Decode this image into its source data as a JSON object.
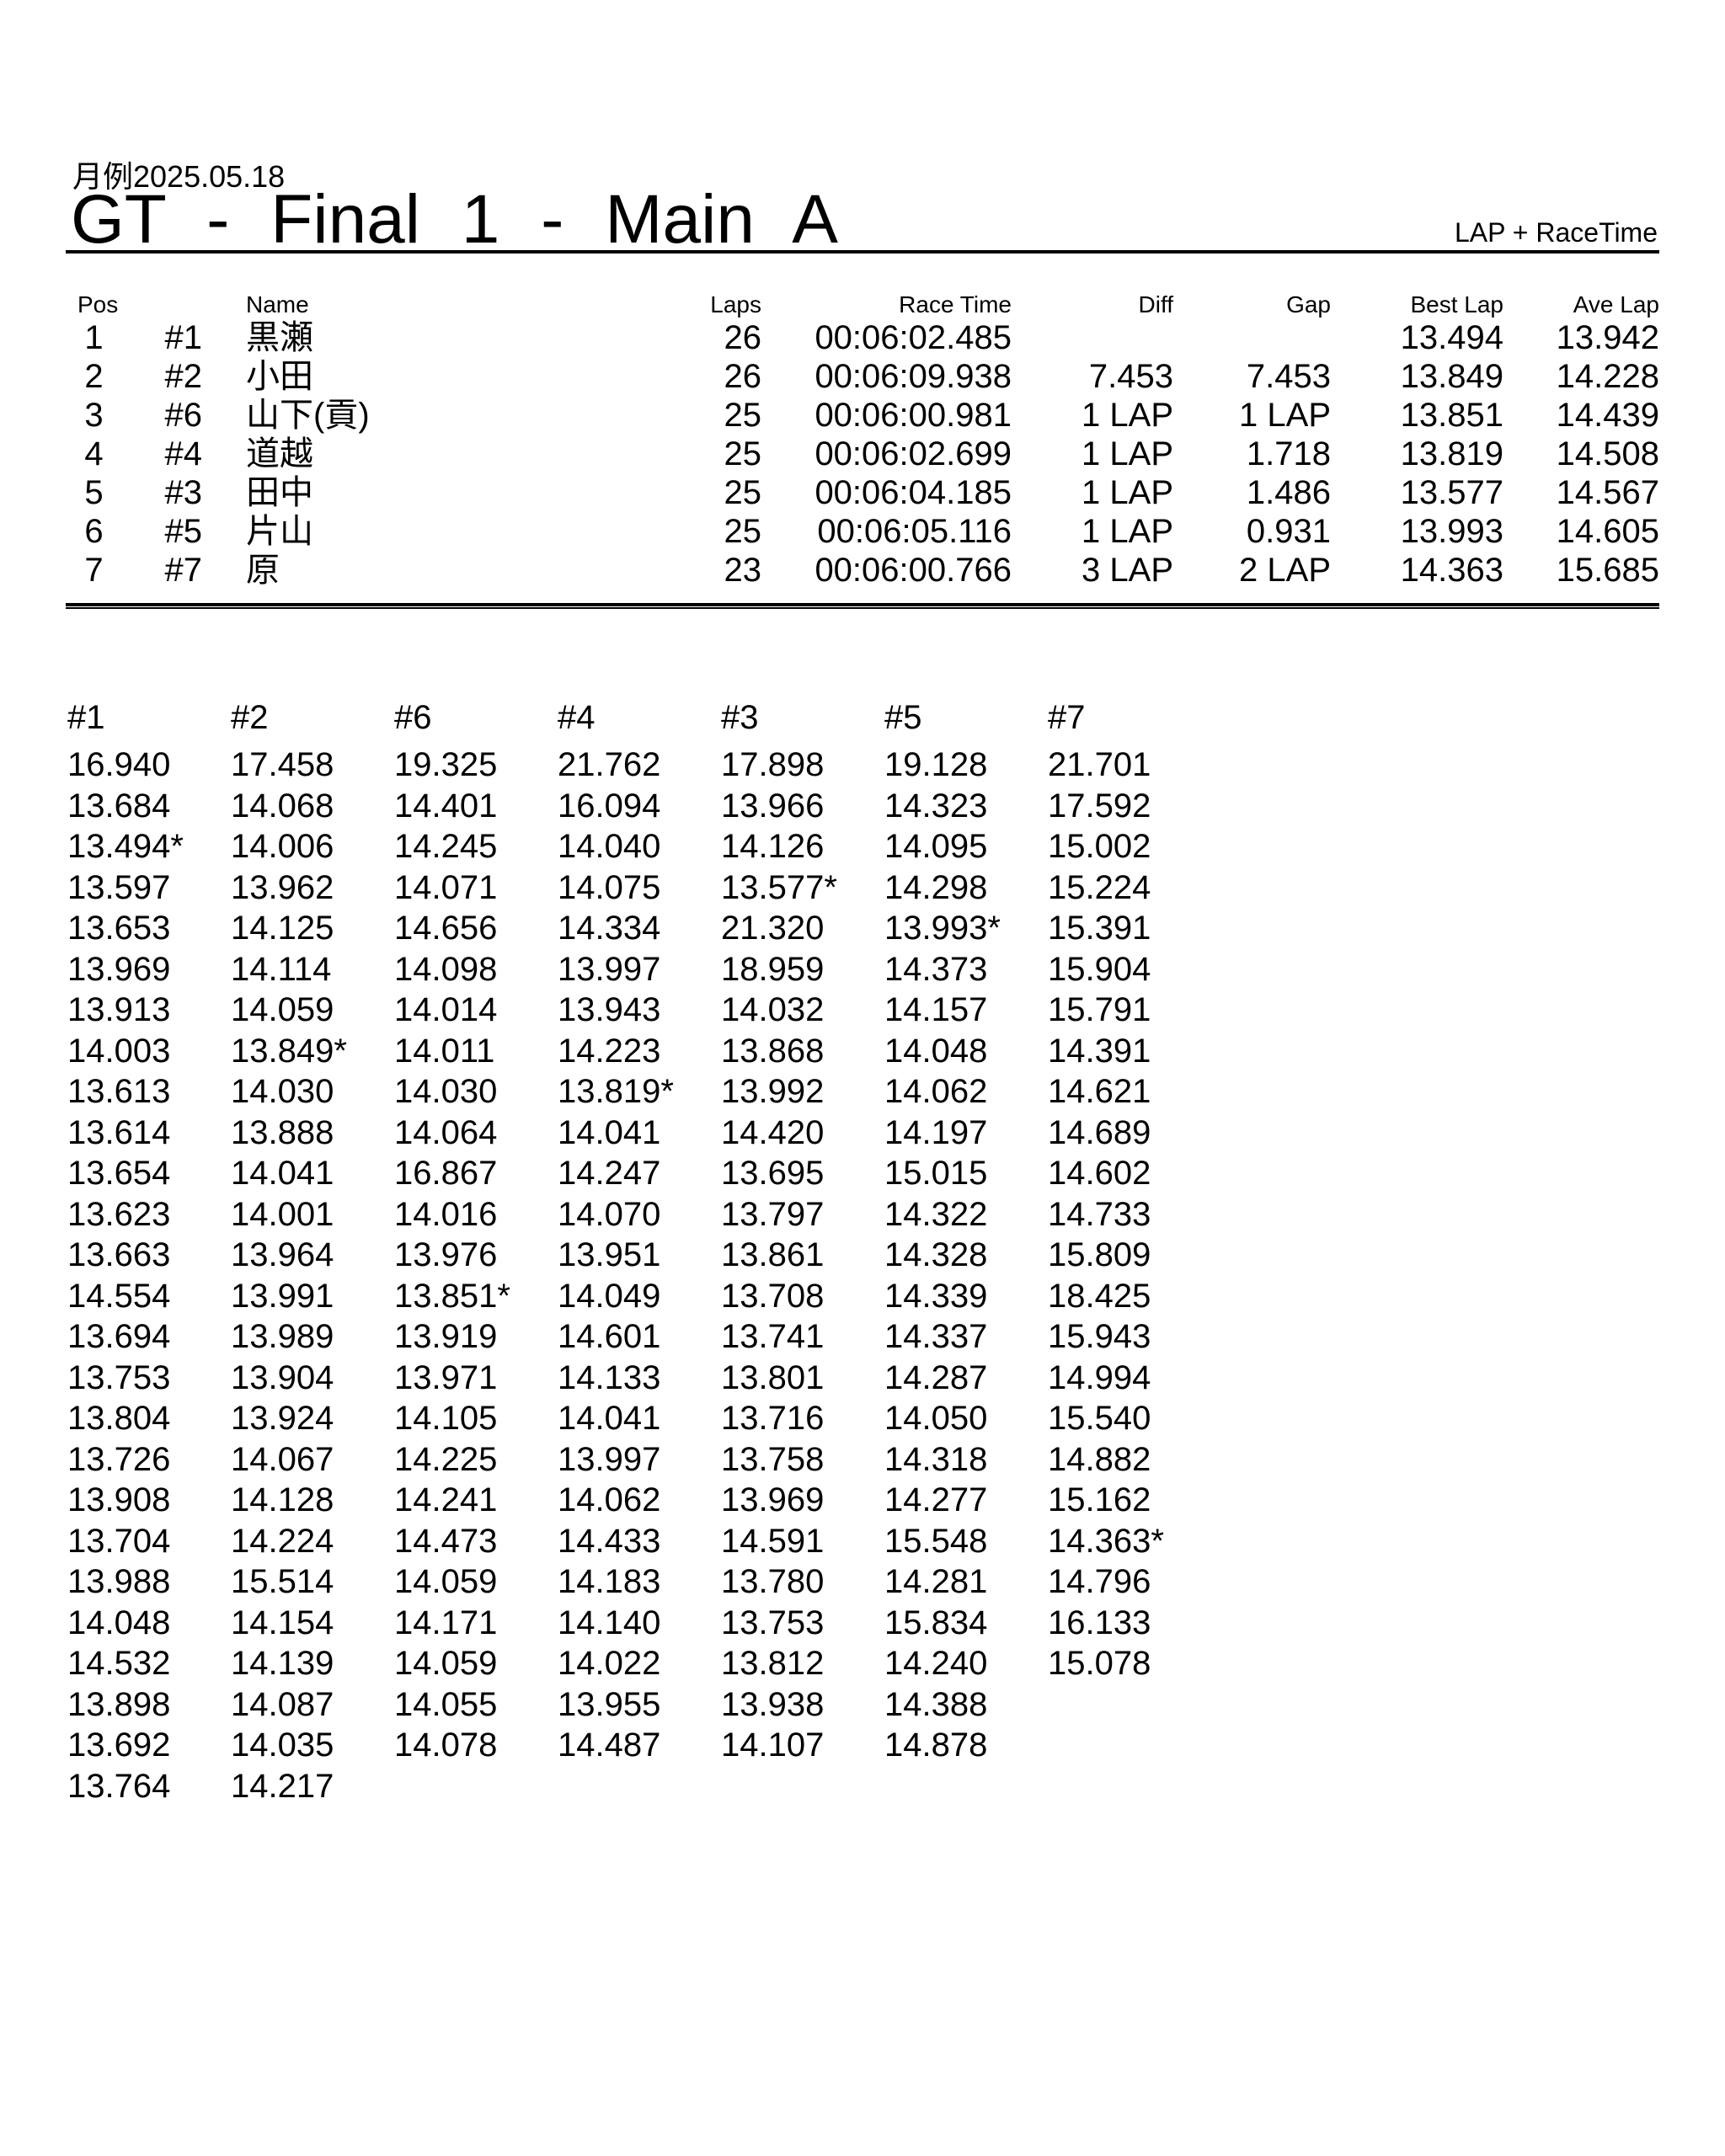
{
  "header": {
    "date": "月例2025.05.18",
    "title": "GT - Final 1 - Main A",
    "mode_label": "LAP + RaceTime"
  },
  "results": {
    "columns": [
      "Pos",
      "Name",
      "Laps",
      "Race Time",
      "Diff",
      "Gap",
      "Best Lap",
      "Ave Lap"
    ],
    "rows": [
      {
        "pos": "1",
        "car": "#1",
        "name": "黒瀬",
        "laps": "26",
        "race_time": "00:06:02.485",
        "diff": "",
        "gap": "",
        "best_lap": "13.494",
        "ave_lap": "13.942"
      },
      {
        "pos": "2",
        "car": "#2",
        "name": "小田",
        "laps": "26",
        "race_time": "00:06:09.938",
        "diff": "7.453",
        "gap": "7.453",
        "best_lap": "13.849",
        "ave_lap": "14.228"
      },
      {
        "pos": "3",
        "car": "#6",
        "name": "山下(貢)",
        "laps": "25",
        "race_time": "00:06:00.981",
        "diff": "1 LAP",
        "gap": "1 LAP",
        "best_lap": "13.851",
        "ave_lap": "14.439"
      },
      {
        "pos": "4",
        "car": "#4",
        "name": "道越",
        "laps": "25",
        "race_time": "00:06:02.699",
        "diff": "1 LAP",
        "gap": "1.718",
        "best_lap": "13.819",
        "ave_lap": "14.508"
      },
      {
        "pos": "5",
        "car": "#3",
        "name": "田中",
        "laps": "25",
        "race_time": "00:06:04.185",
        "diff": "1 LAP",
        "gap": "1.486",
        "best_lap": "13.577",
        "ave_lap": "14.567"
      },
      {
        "pos": "6",
        "car": "#5",
        "name": "片山",
        "laps": "25",
        "race_time": "00:06:05.116",
        "diff": "1 LAP",
        "gap": "0.931",
        "best_lap": "13.993",
        "ave_lap": "14.605"
      },
      {
        "pos": "7",
        "car": "#7",
        "name": "原",
        "laps": "23",
        "race_time": "00:06:00.766",
        "diff": "3 LAP",
        "gap": "2 LAP",
        "best_lap": "14.363",
        "ave_lap": "15.685"
      }
    ]
  },
  "lap_times": {
    "series": [
      {
        "car": "#1",
        "laps": [
          "16.940",
          "13.684",
          "13.494*",
          "13.597",
          "13.653",
          "13.969",
          "13.913",
          "14.003",
          "13.613",
          "13.614",
          "13.654",
          "13.623",
          "13.663",
          "14.554",
          "13.694",
          "13.753",
          "13.804",
          "13.726",
          "13.908",
          "13.704",
          "13.988",
          "14.048",
          "14.532",
          "13.898",
          "13.692",
          "13.764"
        ]
      },
      {
        "car": "#2",
        "laps": [
          "17.458",
          "14.068",
          "14.006",
          "13.962",
          "14.125",
          "14.114",
          "14.059",
          "13.849*",
          "14.030",
          "13.888",
          "14.041",
          "14.001",
          "13.964",
          "13.991",
          "13.989",
          "13.904",
          "13.924",
          "14.067",
          "14.128",
          "14.224",
          "15.514",
          "14.154",
          "14.139",
          "14.087",
          "14.035",
          "14.217"
        ]
      },
      {
        "car": "#6",
        "laps": [
          "19.325",
          "14.401",
          "14.245",
          "14.071",
          "14.656",
          "14.098",
          "14.014",
          "14.011",
          "14.030",
          "14.064",
          "16.867",
          "14.016",
          "13.976",
          "13.851*",
          "13.919",
          "13.971",
          "14.105",
          "14.225",
          "14.241",
          "14.473",
          "14.059",
          "14.171",
          "14.059",
          "14.055",
          "14.078"
        ]
      },
      {
        "car": "#4",
        "laps": [
          "21.762",
          "16.094",
          "14.040",
          "14.075",
          "14.334",
          "13.997",
          "13.943",
          "14.223",
          "13.819*",
          "14.041",
          "14.247",
          "14.070",
          "13.951",
          "14.049",
          "14.601",
          "14.133",
          "14.041",
          "13.997",
          "14.062",
          "14.433",
          "14.183",
          "14.140",
          "14.022",
          "13.955",
          "14.487"
        ]
      },
      {
        "car": "#3",
        "laps": [
          "17.898",
          "13.966",
          "14.126",
          "13.577*",
          "21.320",
          "18.959",
          "14.032",
          "13.868",
          "13.992",
          "14.420",
          "13.695",
          "13.797",
          "13.861",
          "13.708",
          "13.741",
          "13.801",
          "13.716",
          "13.758",
          "13.969",
          "14.591",
          "13.780",
          "13.753",
          "13.812",
          "13.938",
          "14.107"
        ]
      },
      {
        "car": "#5",
        "laps": [
          "19.128",
          "14.323",
          "14.095",
          "14.298",
          "13.993*",
          "14.373",
          "14.157",
          "14.048",
          "14.062",
          "14.197",
          "15.015",
          "14.322",
          "14.328",
          "14.339",
          "14.337",
          "14.287",
          "14.050",
          "14.318",
          "14.277",
          "15.548",
          "14.281",
          "15.834",
          "14.240",
          "14.388",
          "14.878"
        ]
      },
      {
        "car": "#7",
        "laps": [
          "21.701",
          "17.592",
          "15.002",
          "15.224",
          "15.391",
          "15.904",
          "15.791",
          "14.391",
          "14.621",
          "14.689",
          "14.602",
          "14.733",
          "15.809",
          "18.425",
          "15.943",
          "14.994",
          "15.540",
          "14.882",
          "15.162",
          "14.363*",
          "14.796",
          "16.133",
          "15.078"
        ]
      }
    ]
  }
}
